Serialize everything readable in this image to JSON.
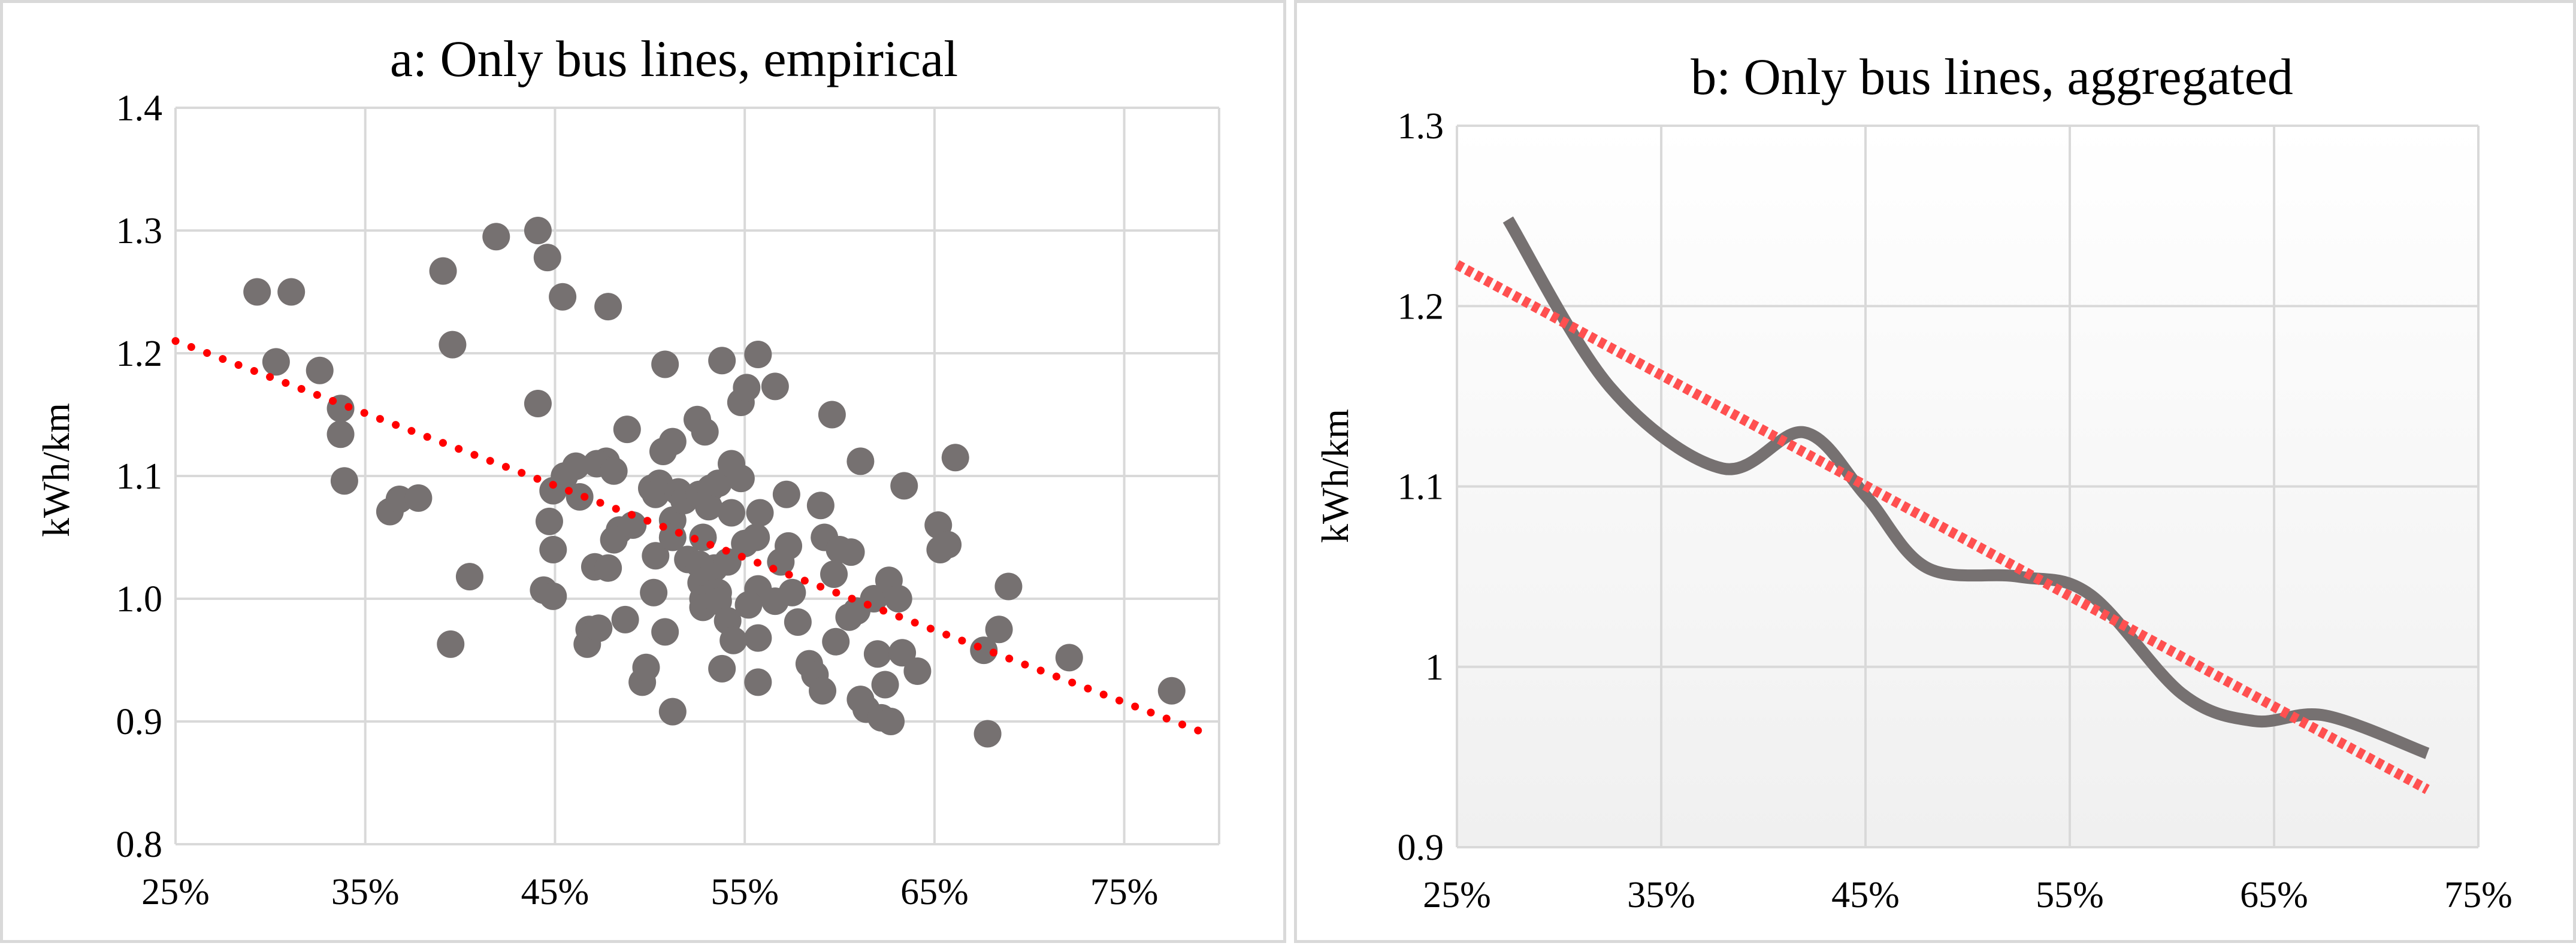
{
  "chart_data": [
    {
      "type": "scatter",
      "title": "a: Only bus lines, empirical",
      "xlabel": "",
      "ylabel": "kWh/km",
      "xlim": [
        0.25,
        0.8
      ],
      "ylim": [
        0.8,
        1.4
      ],
      "x_ticks": [
        0.25,
        0.35,
        0.45,
        0.55,
        0.65,
        0.75
      ],
      "x_tick_labels": [
        "25%",
        "35%",
        "45%",
        "55%",
        "65%",
        "75%"
      ],
      "y_ticks": [
        0.8,
        0.9,
        1.0,
        1.1,
        1.2,
        1.3,
        1.4
      ],
      "y_tick_labels": [
        "0.8",
        "0.9",
        "1.0",
        "1.1",
        "1.2",
        "1.3",
        "1.4"
      ],
      "grid": true,
      "colors": {
        "points": "#767171",
        "trend": "#ff0000",
        "grid": "#d9d9d9"
      },
      "series": [
        {
          "name": "bus lines",
          "points": [
            [
              0.293,
              1.25
            ],
            [
              0.311,
              1.25
            ],
            [
              0.303,
              1.193
            ],
            [
              0.326,
              1.186
            ],
            [
              0.337,
              1.155
            ],
            [
              0.337,
              1.134
            ],
            [
              0.339,
              1.096
            ],
            [
              0.363,
              1.071
            ],
            [
              0.368,
              1.081
            ],
            [
              0.378,
              1.082
            ],
            [
              0.391,
              1.267
            ],
            [
              0.396,
              1.207
            ],
            [
              0.395,
              0.963
            ],
            [
              0.405,
              1.018
            ],
            [
              0.419,
              1.295
            ],
            [
              0.441,
              1.3
            ],
            [
              0.446,
              1.278
            ],
            [
              0.441,
              1.159
            ],
            [
              0.454,
              1.246
            ],
            [
              0.478,
              1.238
            ],
            [
              0.455,
              1.1
            ],
            [
              0.461,
              1.108
            ],
            [
              0.449,
              1.088
            ],
            [
              0.463,
              1.083
            ],
            [
              0.447,
              1.063
            ],
            [
              0.449,
              1.04
            ],
            [
              0.444,
              1.007
            ],
            [
              0.449,
              1.002
            ],
            [
              0.477,
              1.112
            ],
            [
              0.472,
              1.11
            ],
            [
              0.481,
              1.104
            ],
            [
              0.488,
              1.138
            ],
            [
              0.484,
              1.056
            ],
            [
              0.481,
              1.048
            ],
            [
              0.471,
              1.026
            ],
            [
              0.478,
              1.025
            ],
            [
              0.468,
              0.975
            ],
            [
              0.467,
              0.963
            ],
            [
              0.473,
              0.976
            ],
            [
              0.491,
              1.06
            ],
            [
              0.487,
              0.983
            ],
            [
              0.496,
              0.932
            ],
            [
              0.498,
              0.944
            ],
            [
              0.505,
              1.094
            ],
            [
              0.501,
              1.09
            ],
            [
              0.503,
              1.085
            ],
            [
              0.503,
              1.035
            ],
            [
              0.502,
              1.005
            ],
            [
              0.508,
              1.191
            ],
            [
              0.512,
              1.128
            ],
            [
              0.507,
              1.12
            ],
            [
              0.515,
              1.087
            ],
            [
              0.512,
              1.064
            ],
            [
              0.518,
              1.08
            ],
            [
              0.512,
              1.05
            ],
            [
              0.52,
              1.032
            ],
            [
              0.508,
              0.973
            ],
            [
              0.512,
              0.908
            ],
            [
              0.525,
              1.146
            ],
            [
              0.529,
              1.136
            ],
            [
              0.526,
              1.085
            ],
            [
              0.531,
              1.075
            ],
            [
              0.528,
              1.05
            ],
            [
              0.532,
              1.09
            ],
            [
              0.536,
              1.094
            ],
            [
              0.526,
              1.028
            ],
            [
              0.531,
              1.02
            ],
            [
              0.527,
              1.013
            ],
            [
              0.528,
              1.0
            ],
            [
              0.534,
              1.025
            ],
            [
              0.536,
              1.005
            ],
            [
              0.528,
              0.993
            ],
            [
              0.538,
              1.194
            ],
            [
              0.548,
              1.16
            ],
            [
              0.551,
              1.172
            ],
            [
              0.543,
              1.11
            ],
            [
              0.548,
              1.098
            ],
            [
              0.543,
              1.07
            ],
            [
              0.541,
              1.03
            ],
            [
              0.536,
              0.998
            ],
            [
              0.541,
              0.982
            ],
            [
              0.544,
              0.966
            ],
            [
              0.538,
              0.943
            ],
            [
              0.557,
              1.199
            ],
            [
              0.566,
              1.173
            ],
            [
              0.558,
              1.07
            ],
            [
              0.556,
              1.05
            ],
            [
              0.55,
              1.045
            ],
            [
              0.557,
              1.008
            ],
            [
              0.566,
              0.998
            ],
            [
              0.552,
              0.995
            ],
            [
              0.557,
              0.968
            ],
            [
              0.557,
              0.932
            ],
            [
              0.572,
              1.085
            ],
            [
              0.573,
              1.043
            ],
            [
              0.569,
              1.03
            ],
            [
              0.575,
              1.005
            ],
            [
              0.578,
              0.981
            ],
            [
              0.59,
              1.076
            ],
            [
              0.596,
              1.15
            ],
            [
              0.592,
              1.05
            ],
            [
              0.6,
              1.04
            ],
            [
              0.597,
              1.02
            ],
            [
              0.605,
              0.985
            ],
            [
              0.598,
              0.965
            ],
            [
              0.584,
              0.947
            ],
            [
              0.587,
              0.938
            ],
            [
              0.591,
              0.925
            ],
            [
              0.611,
              1.112
            ],
            [
              0.606,
              1.038
            ],
            [
              0.618,
              1.0
            ],
            [
              0.609,
              0.99
            ],
            [
              0.611,
              0.918
            ],
            [
              0.614,
              0.91
            ],
            [
              0.62,
              0.955
            ],
            [
              0.624,
              0.93
            ],
            [
              0.622,
              0.903
            ],
            [
              0.627,
              0.9
            ],
            [
              0.626,
              1.015
            ],
            [
              0.631,
              1.0
            ],
            [
              0.634,
              1.092
            ],
            [
              0.633,
              0.956
            ],
            [
              0.641,
              0.941
            ],
            [
              0.652,
              1.06
            ],
            [
              0.657,
              1.044
            ],
            [
              0.661,
              1.115
            ],
            [
              0.653,
              1.04
            ],
            [
              0.676,
              0.958
            ],
            [
              0.678,
              0.89
            ],
            [
              0.684,
              0.975
            ],
            [
              0.689,
              1.01
            ],
            [
              0.721,
              0.952
            ],
            [
              0.775,
              0.925
            ]
          ]
        }
      ],
      "trendline": {
        "type": "linear",
        "x": [
          0.25,
          0.79
        ],
        "y": [
          1.21,
          0.892
        ]
      }
    },
    {
      "type": "line",
      "title": "b: Only bus lines, aggregated",
      "xlabel": "",
      "ylabel": "kWh/km",
      "xlim": [
        0.25,
        0.75
      ],
      "ylim": [
        0.9,
        1.3
      ],
      "x_ticks": [
        0.25,
        0.35,
        0.45,
        0.55,
        0.65,
        0.75
      ],
      "x_tick_labels": [
        "25%",
        "35%",
        "45%",
        "55%",
        "65%",
        "75%"
      ],
      "y_ticks": [
        0.9,
        1.0,
        1.1,
        1.2,
        1.3
      ],
      "y_tick_labels": [
        "0.9",
        "1",
        "1.1",
        "1.2",
        "1.3"
      ],
      "grid": true,
      "colors": {
        "line": "#767171",
        "trend": "#ff5050",
        "grid": "#d9d9d9",
        "bg_top": "#ffffff",
        "bg_bottom": "#f0f0f0"
      },
      "series": [
        {
          "name": "aggregated",
          "x": [
            0.275,
            0.325,
            0.38,
            0.42,
            0.45,
            0.48,
            0.525,
            0.56,
            0.605,
            0.64,
            0.675,
            0.725
          ],
          "y": [
            1.248,
            1.155,
            1.11,
            1.13,
            1.095,
            1.055,
            1.05,
            1.04,
            0.985,
            0.97,
            0.973,
            0.952
          ]
        }
      ],
      "trendline": {
        "type": "linear",
        "x": [
          0.25,
          0.725
        ],
        "y": [
          1.223,
          0.932
        ]
      }
    }
  ]
}
